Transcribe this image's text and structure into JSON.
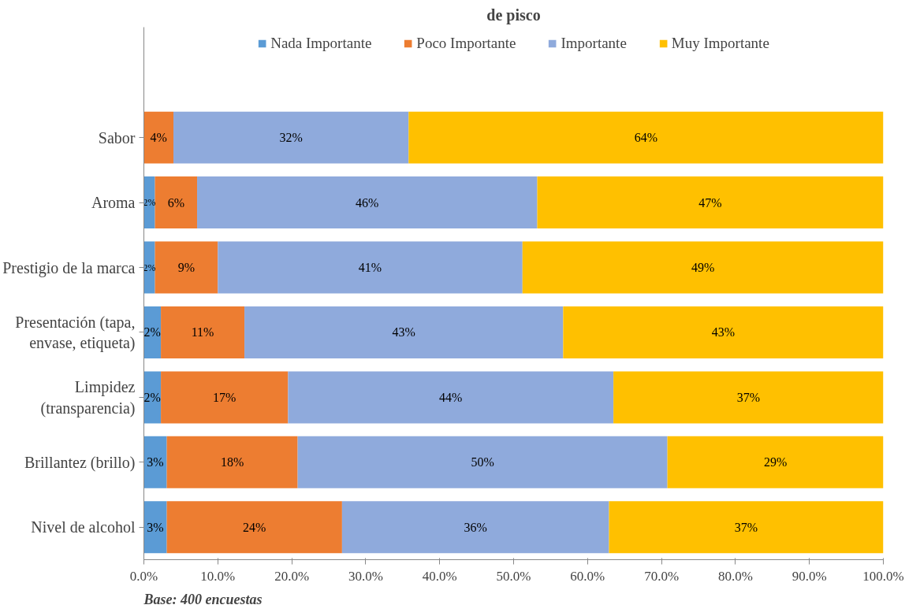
{
  "chart_data": {
    "type": "bar",
    "orientation": "horizontal",
    "stacked": true,
    "title": "de pisco",
    "categories": [
      "Sabor",
      "Aroma",
      "Prestigio de la marca",
      "Presentación (tapa,\nenvase, etiqueta)",
      "Limpidez\n(transparencia)",
      "Brillantez (brillo)",
      "Nivel de alcohol"
    ],
    "series": [
      {
        "name": "Nada Importante",
        "color": "#5b9bd5",
        "values": [
          0,
          1.5,
          1.5,
          2.3,
          2.3,
          3.1,
          3.1
        ],
        "value_labels": [
          null,
          "2%",
          "2%",
          "2%",
          "2%",
          "3%",
          "3%"
        ]
      },
      {
        "name": "Poco Importante",
        "color": "#ed7d31",
        "values": [
          4,
          5.7,
          8.5,
          11.3,
          17.2,
          17.7,
          23.7
        ],
        "value_labels": [
          "4%",
          "6%",
          "9%",
          "11%",
          "17%",
          "18%",
          "24%"
        ]
      },
      {
        "name": "Importante",
        "color": "#8faadc",
        "values": [
          31.8,
          46,
          41.2,
          43.1,
          44,
          50,
          36.1
        ],
        "value_labels": [
          "32%",
          "46%",
          "41%",
          "43%",
          "44%",
          "50%",
          "36%"
        ]
      },
      {
        "name": "Muy Importante",
        "color": "#ffc000",
        "values": [
          64.2,
          46.8,
          48.8,
          43.3,
          36.5,
          29.2,
          37.1
        ],
        "value_labels": [
          "64%",
          "47%",
          "49%",
          "43%",
          "37%",
          "29%",
          "37%"
        ]
      }
    ],
    "xlim": [
      0,
      100
    ],
    "xticks": [
      {
        "value": 0,
        "label": "0.0%"
      },
      {
        "value": 10,
        "label": "10.0%"
      },
      {
        "value": 20,
        "label": "20.0%"
      },
      {
        "value": 30,
        "label": "30.0%"
      },
      {
        "value": 40,
        "label": "40.0%"
      },
      {
        "value": 50,
        "label": "50.0%"
      },
      {
        "value": 60,
        "label": "60.0%"
      },
      {
        "value": 70,
        "label": "70.0%"
      },
      {
        "value": 80,
        "label": "80.0%"
      },
      {
        "value": 90,
        "label": "90.0%"
      },
      {
        "value": 100,
        "label": "100.0%"
      }
    ],
    "grid": false,
    "legend": "top",
    "annotations": [
      "Base: 400 encuestas"
    ]
  }
}
